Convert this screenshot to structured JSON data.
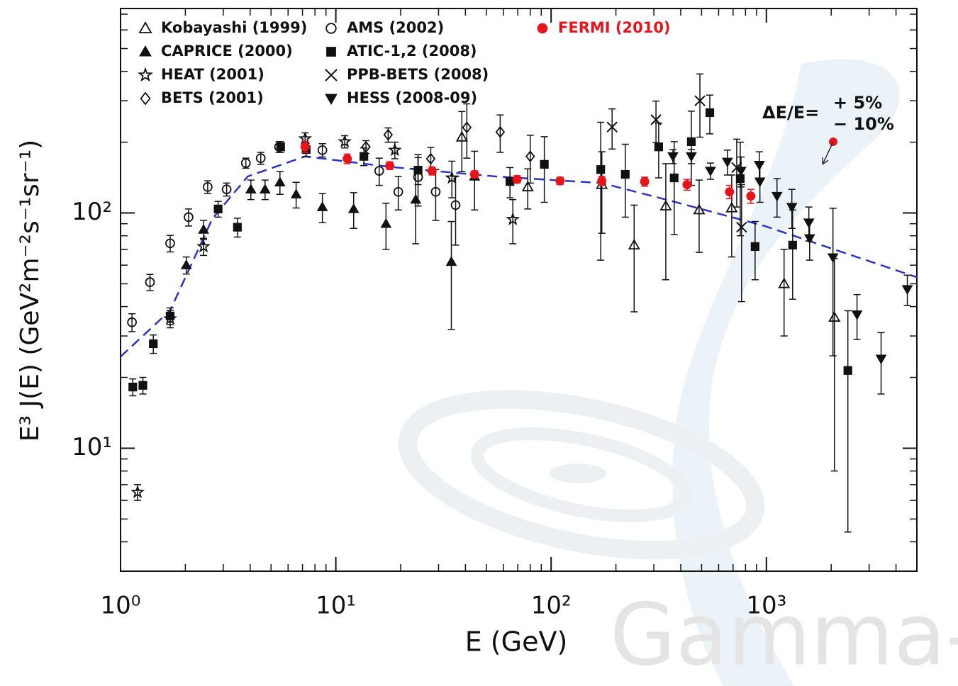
{
  "chart_data": {
    "type": "scatter",
    "xlabel": "E  (GeV)",
    "ylabel": "E³ J(E)  (GeV²m⁻²s⁻¹sr⁻¹)",
    "xlog": true,
    "ylog": true,
    "xlim": [
      1,
      5000
    ],
    "ylim": [
      3,
      740
    ],
    "xticks": [
      {
        "value": 1,
        "label": "10⁰"
      },
      {
        "value": 10,
        "label": "10¹"
      },
      {
        "value": 100,
        "label": "10²"
      },
      {
        "value": 1000,
        "label": "10³"
      }
    ],
    "yticks": [
      {
        "value": 10,
        "label": "10¹"
      },
      {
        "value": 100,
        "label": "10²"
      }
    ],
    "xticks_minor": [
      2,
      3,
      4,
      5,
      6,
      7,
      8,
      9,
      20,
      30,
      40,
      50,
      60,
      70,
      80,
      90,
      200,
      300,
      400,
      500,
      600,
      700,
      800,
      900,
      2000,
      3000,
      4000
    ],
    "yticks_minor": [
      4,
      5,
      6,
      7,
      8,
      9,
      20,
      30,
      40,
      50,
      60,
      70,
      80,
      90,
      200,
      300,
      400,
      500,
      600,
      700
    ],
    "series": [
      {
        "name": "Kobayashi (1999)",
        "marker": "triangle-open",
        "color": "#111111",
        "x": [
          38.5,
          77.9,
          172,
          243,
          341,
          487,
          690,
          1208,
          2070
        ],
        "values": [
          210,
          129,
          132,
          73,
          107,
          103,
          105,
          50,
          36
        ],
        "errors": [
          60,
          25,
          50,
          35,
          55,
          35,
          40,
          20,
          28
        ]
      },
      {
        "name": "CAPRICE (2000)",
        "marker": "triangle",
        "color": "#111111",
        "x": [
          2.02,
          2.43,
          4.03,
          4.69,
          5.5,
          6.54,
          8.66,
          12.1,
          17.1,
          23.5,
          34.4,
          44.1
        ],
        "values": [
          60,
          85,
          126,
          126,
          135,
          120,
          106,
          104,
          90,
          114,
          62,
          143
        ],
        "errors": [
          5,
          8,
          12,
          12,
          15,
          15,
          15,
          18,
          20,
          40,
          30,
          40
        ]
      },
      {
        "name": "HEAT (2001)",
        "marker": "star-open",
        "color": "#111111",
        "x": [
          1.2,
          1.7,
          2.43,
          7.2,
          11.0,
          18.8,
          34.6,
          66.4
        ],
        "values": [
          6.5,
          35.5,
          72,
          207,
          201,
          185,
          141,
          94
        ],
        "errors": [
          0.5,
          3,
          6,
          12,
          12,
          15,
          25,
          20
        ]
      },
      {
        "name": "BETS (2001)",
        "marker": "diamond-open",
        "color": "#111111",
        "x": [
          13.8,
          17.5,
          27.6,
          40.6,
          58,
          80
        ],
        "values": [
          191,
          215,
          170,
          231,
          221,
          174
        ],
        "errors": [
          12,
          15,
          20,
          60,
          40,
          40
        ]
      },
      {
        "name": "AMS (2002)",
        "marker": "circle-open",
        "color": "#111111",
        "x": [
          1.13,
          1.37,
          1.7,
          2.07,
          2.54,
          3.11,
          3.82,
          4.48,
          5.45,
          8.66,
          15.9,
          19.5,
          24.1,
          29.1,
          36
        ],
        "values": [
          34.3,
          50.8,
          74.3,
          96,
          129,
          126,
          163,
          171,
          191,
          185,
          151,
          123,
          142,
          123,
          108
        ],
        "errors": [
          3,
          4,
          6,
          8,
          8,
          8,
          8,
          10,
          10,
          12,
          20,
          20,
          35,
          30,
          35
        ]
      },
      {
        "name": "ATIC-1,2 (2008)",
        "marker": "square",
        "color": "#111111",
        "x": [
          1.14,
          1.27,
          1.42,
          1.7,
          2.84,
          3.49,
          5.54,
          7.28,
          13.5,
          24.1,
          64.4,
          93,
          170,
          221,
          316,
          373,
          448,
          546,
          756,
          886,
          1324,
          2390
        ],
        "values": [
          18.2,
          18.5,
          27.8,
          36.5,
          104,
          87,
          191,
          186,
          174,
          152,
          136,
          161,
          153,
          146,
          191,
          141,
          201,
          267,
          140,
          72,
          73,
          21.4
        ],
        "errors": [
          1.5,
          1.5,
          2.5,
          3,
          8,
          8,
          10,
          12,
          15,
          20,
          20,
          50,
          90,
          50,
          50,
          60,
          70,
          50,
          60,
          20,
          30,
          17
        ]
      },
      {
        "name": "PPB-BETS (2008)",
        "marker": "x",
        "color": "#111111",
        "x": [
          192,
          307,
          491,
          728,
          767
        ],
        "values": [
          232,
          249,
          300,
          156,
          87
        ],
        "errors": [
          45,
          50,
          90,
          50,
          45
        ]
      },
      {
        "name": "HESS (2008-09)",
        "marker": "triangle-down",
        "color": "#111111",
        "x": [
          368,
          448,
          550,
          659,
          762,
          927,
          933,
          1120,
          1313,
          1575,
          1588,
          2038,
          2636,
          3410,
          4515
        ],
        "values": [
          174,
          174,
          151,
          165,
          151,
          160,
          136,
          118,
          106,
          91,
          78,
          64.7,
          37,
          24,
          47.4
        ],
        "errors": [
          12,
          12,
          12,
          20,
          22,
          22,
          25,
          22,
          20,
          15,
          15,
          40,
          8,
          7,
          7
        ]
      },
      {
        "name": "FERMI (2010)",
        "marker": "circle",
        "color": "#e8141c",
        "x": [
          7.2,
          11.3,
          17.8,
          28,
          44.1,
          69.5,
          110,
          172,
          272,
          428,
          674,
          847
        ],
        "values": [
          191,
          170,
          159,
          151,
          146,
          139,
          137,
          137,
          136,
          132,
          123,
          118
        ],
        "errors": [
          10,
          8,
          6,
          6,
          5,
          5,
          5,
          6,
          6,
          7,
          8,
          8
        ]
      }
    ],
    "model_curve": {
      "color": "#2a35c8",
      "x": [
        1,
        1.7,
        2.67,
        3.9,
        7.2,
        17.8,
        55.4,
        172,
        368,
        982,
        5000
      ],
      "values": [
        24.5,
        38.5,
        94.6,
        143,
        174,
        157,
        143,
        134,
        112,
        88,
        53.3
      ]
    },
    "annotations": [
      "ΔE/E=",
      "+ 5%",
      "− 10%"
    ],
    "watermark": "Gamma-ra"
  }
}
